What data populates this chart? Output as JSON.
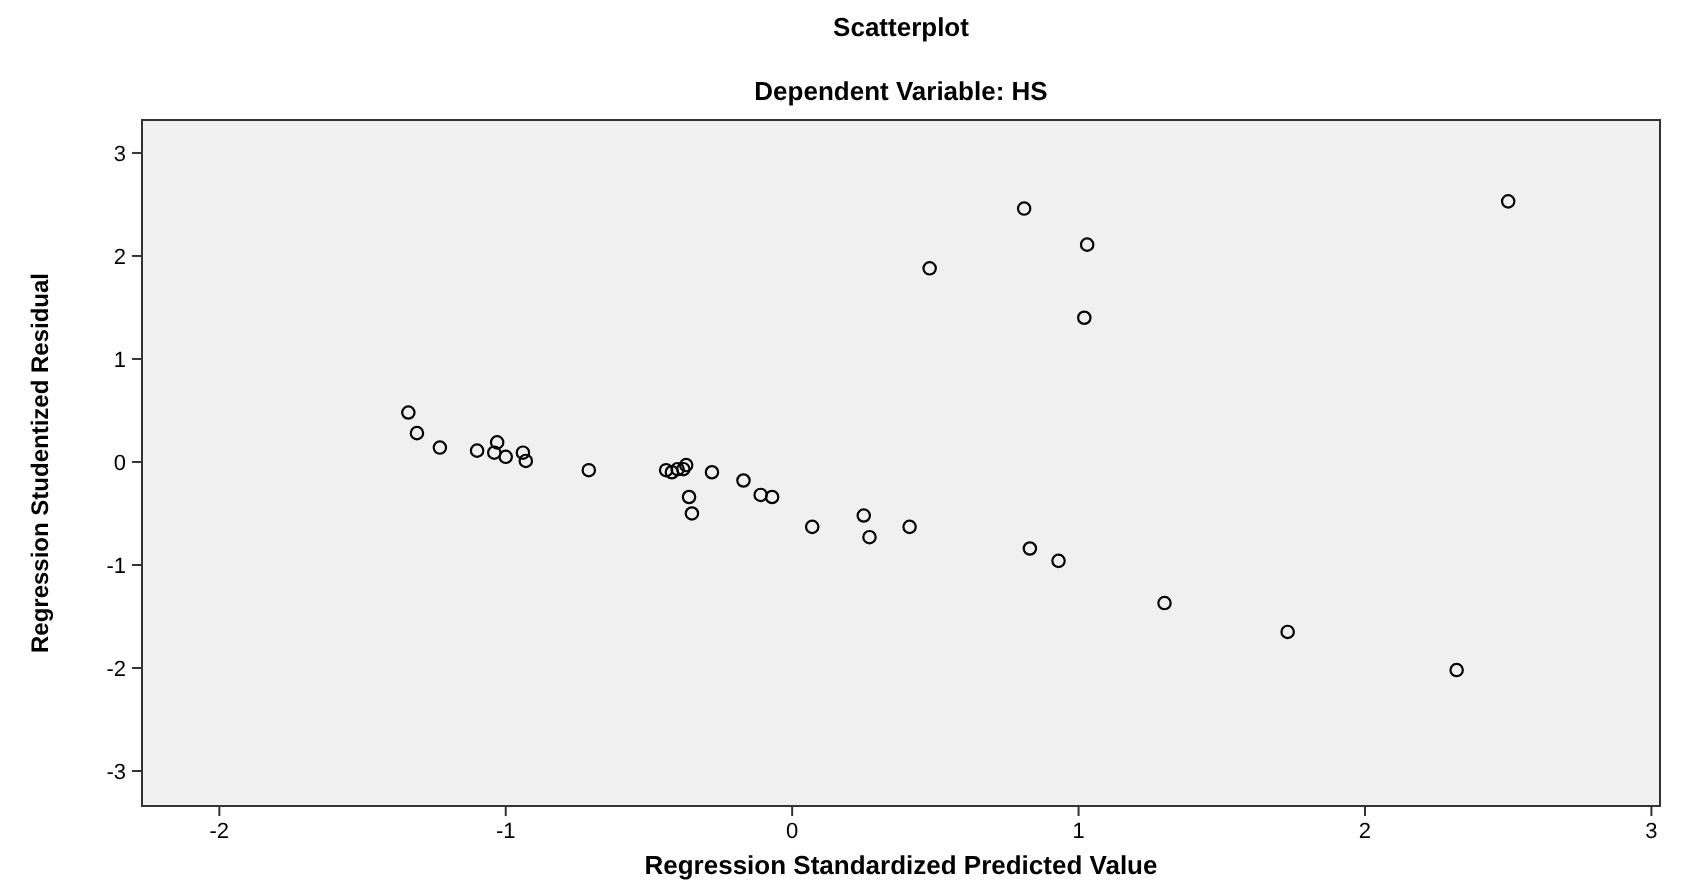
{
  "chart_data": {
    "type": "scatter",
    "title": "Scatterplot",
    "subtitle": "Dependent Variable: HS",
    "xlabel": "Regression Standardized Predicted Value",
    "ylabel": "Regression Studentized Residual",
    "x": [
      -1.34,
      -1.31,
      -1.23,
      -1.1,
      -1.03,
      -1.04,
      -1.0,
      -0.94,
      -0.93,
      -0.71,
      -0.44,
      -0.42,
      -0.4,
      -0.37,
      -0.38,
      -0.28,
      -0.36,
      -0.35,
      -0.17,
      -0.11,
      -0.07,
      0.07,
      0.25,
      0.27,
      0.41,
      0.83,
      0.93,
      1.3,
      1.73,
      2.32,
      0.48,
      0.81,
      1.03,
      1.02,
      2.5
    ],
    "series": [
      {
        "color": "#000000",
        "values": [
          0.48,
          0.28,
          0.14,
          0.11,
          0.19,
          0.09,
          0.05,
          0.09,
          0.01,
          -0.08,
          -0.08,
          -0.1,
          -0.07,
          -0.03,
          -0.07,
          -0.1,
          -0.34,
          -0.5,
          -0.18,
          -0.32,
          -0.34,
          -0.63,
          -0.52,
          -0.73,
          -0.63,
          -0.84,
          -0.96,
          -1.37,
          -1.65,
          -2.02,
          1.88,
          2.46,
          2.11,
          1.4,
          2.53
        ]
      }
    ],
    "xlim": [
      -2.27,
      3.03
    ],
    "ylim": [
      -3.34,
      3.32
    ],
    "xticks": [
      -2,
      -1,
      0,
      1,
      2,
      3
    ],
    "yticks": [
      -3,
      -2,
      -1,
      0,
      1,
      2,
      3
    ],
    "marker": "circle",
    "grid": false
  }
}
